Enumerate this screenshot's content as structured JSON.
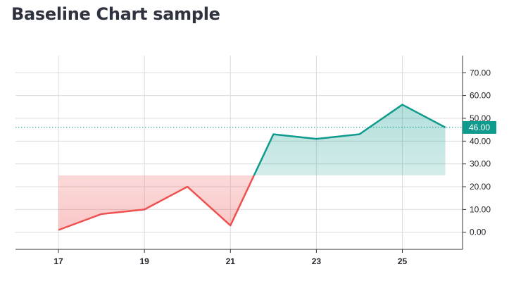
{
  "title": "Baseline Chart sample",
  "chart_data": {
    "type": "baseline-line",
    "x": [
      17,
      18,
      19,
      20,
      21,
      22,
      23,
      24,
      25,
      26
    ],
    "values": [
      1,
      8,
      10,
      20,
      3,
      43,
      41,
      43,
      56,
      46
    ],
    "baseline": 25,
    "xticks": [
      17,
      19,
      21,
      23,
      25
    ],
    "yticks": [
      0,
      10,
      20,
      30,
      40,
      50,
      60,
      70
    ],
    "ytick_labels": [
      "0.00",
      "10.00",
      "20.00",
      "30.00",
      "40.00",
      "50.00",
      "60.00",
      "70.00"
    ],
    "ylim": [
      -7.5,
      77.5
    ],
    "xlim": [
      16.0,
      26.4
    ],
    "last_value_label": "46.00",
    "colors": {
      "above_line": "#0e9a8c",
      "above_fill": "#0e9a8c",
      "below_line": "#ef5050",
      "below_fill": "#ef5050",
      "badge": "#0e9a8c",
      "grid": "#dcdcdc",
      "axis": "#333333"
    },
    "grid": true,
    "y_axis_position": "right"
  }
}
